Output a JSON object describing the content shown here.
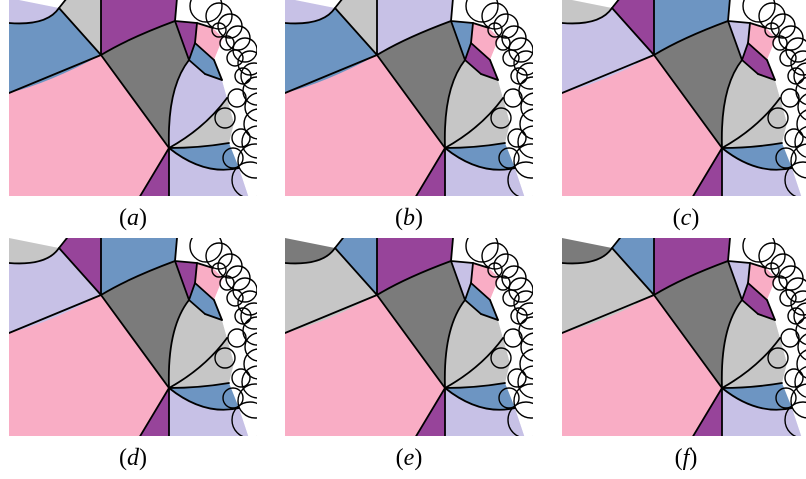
{
  "colors": {
    "pink": "#f9adc5",
    "dark_gray": "#7b7b7b",
    "light_gray": "#c6c6c6",
    "steel_blue": "#6d95c2",
    "purple": "#97449a",
    "lavender": "#c7c1e6",
    "white": "#ffffff",
    "edge": "#000000"
  },
  "panels": [
    {
      "letter": "a",
      "colors": {
        "TL": "steel_blue",
        "TOP": "light_gray",
        "TR": "purple",
        "R1": "lavender",
        "R2": "light_gray",
        "R3": "steel_blue",
        "BR": "lavender",
        "BM": "purple",
        "SA": "purple",
        "SB": "pink",
        "SC": "steel_blue",
        "LEFT": "lavender"
      }
    },
    {
      "letter": "b",
      "colors": {
        "TL": "steel_blue",
        "TOP": "light_gray",
        "TR": "lavender",
        "R1": "light_gray",
        "R2": "light_gray",
        "R3": "steel_blue",
        "BR": "lavender",
        "BM": "purple",
        "SA": "steel_blue",
        "SB": "pink",
        "SC": "purple",
        "LEFT": "lavender"
      }
    },
    {
      "letter": "c",
      "colors": {
        "TL": "lavender",
        "TOP": "purple",
        "TR": "steel_blue",
        "R1": "light_gray",
        "R2": "light_gray",
        "R3": "steel_blue",
        "BR": "lavender",
        "BM": "purple",
        "SA": "lavender",
        "SB": "pink",
        "SC": "purple",
        "LEFT": "light_gray"
      }
    },
    {
      "letter": "d",
      "colors": {
        "TL": "lavender",
        "TOP": "purple",
        "TR": "steel_blue",
        "R1": "light_gray",
        "R2": "light_gray",
        "R3": "steel_blue",
        "BR": "lavender",
        "BM": "purple",
        "SA": "purple",
        "SB": "pink",
        "SC": "steel_blue",
        "LEFT": "light_gray"
      }
    },
    {
      "letter": "e",
      "colors": {
        "TL": "light_gray",
        "TOP": "steel_blue",
        "TR": "purple",
        "R1": "light_gray",
        "R2": "light_gray",
        "R3": "steel_blue",
        "BR": "lavender",
        "BM": "purple",
        "SA": "lavender",
        "SB": "pink",
        "SC": "steel_blue",
        "LEFT": "dark_gray"
      }
    },
    {
      "letter": "f",
      "colors": {
        "TL": "light_gray",
        "TOP": "steel_blue",
        "TR": "purple",
        "R1": "light_gray",
        "R2": "light_gray",
        "R3": "steel_blue",
        "BR": "lavender",
        "BM": "purple",
        "SA": "lavender",
        "SB": "pink",
        "SC": "purple",
        "LEFT": "dark_gray"
      }
    }
  ]
}
